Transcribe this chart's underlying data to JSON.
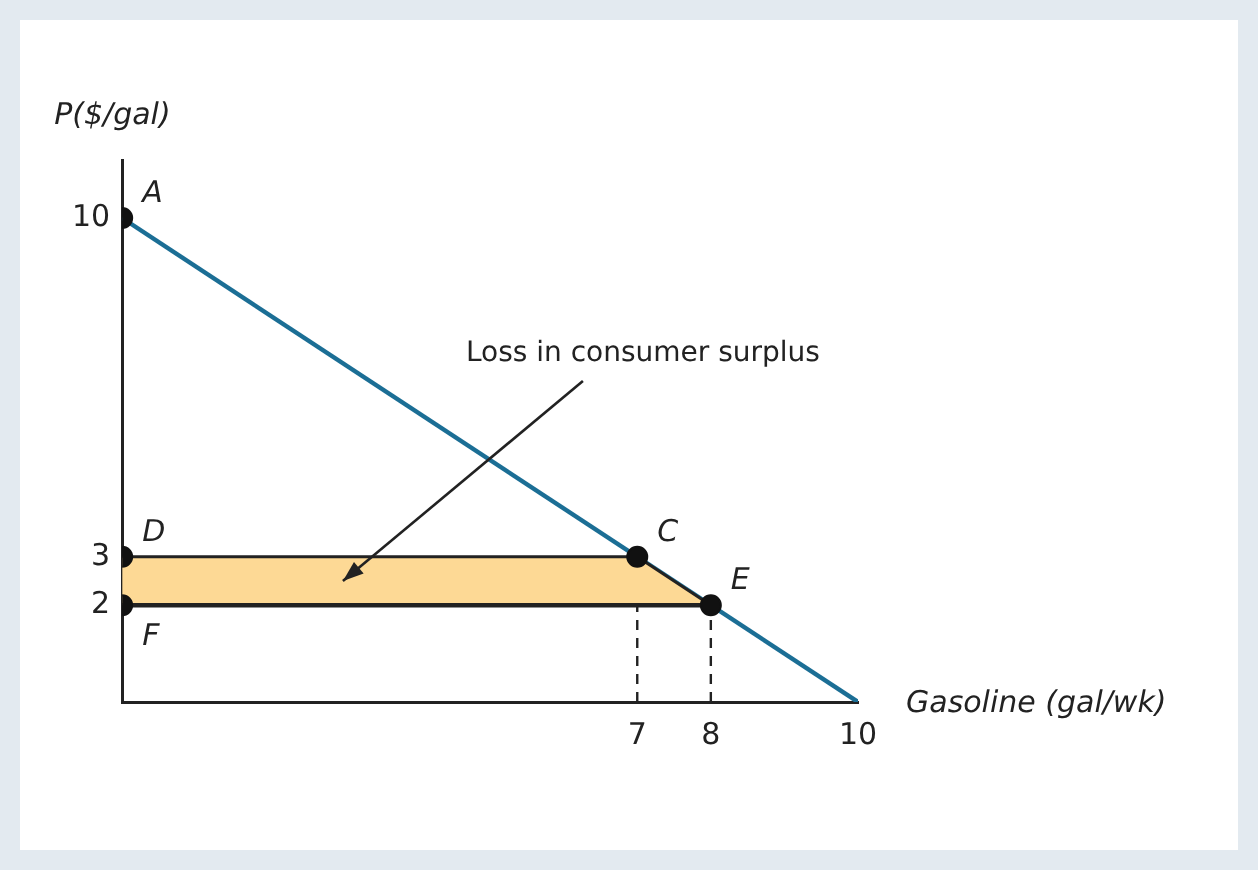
{
  "chart_data": {
    "type": "line",
    "xlabel": "Gasoline (gal/wk)",
    "ylabel": "P($/gal)",
    "series": [
      {
        "x": [
          0,
          8
        ],
        "values": [
          2,
          2
        ],
        "color": "#222222",
        "line_style": "solid"
      },
      {
        "type": "area",
        "x": [
          0,
          7,
          8
        ],
        "values": [
          3,
          3,
          2
        ],
        "color": "#fdd995"
      },
      {
        "x": [
          7,
          7
        ],
        "values": [
          0,
          3
        ],
        "color": "#222222",
        "line_style": "dashed"
      },
      {
        "x": [
          8,
          8
        ],
        "values": [
          0,
          2
        ],
        "color": "#222222",
        "line_style": "dashed"
      },
      {
        "x": [
          0,
          10
        ],
        "values": [
          10,
          0
        ],
        "color": "#1b6e95",
        "line_style": "solid"
      },
      {
        "type": "scatter",
        "x": [
          0,
          0,
          0,
          7,
          8
        ],
        "values": [
          10,
          3,
          2,
          3,
          2
        ],
        "color": "#111111",
        "marker": "circle"
      }
    ],
    "xlim": [
      0,
      10
    ],
    "xticks": [
      7,
      8,
      10
    ],
    "ylim": [
      0,
      11.2
    ],
    "yticks": [
      2,
      3,
      10
    ],
    "grid": false,
    "legend": false,
    "annotations": [
      {
        "text": "A",
        "x": 0,
        "y": 10
      },
      {
        "text": "D",
        "x": 0,
        "y": 3
      },
      {
        "text": "F",
        "x": 0,
        "y": 2
      },
      {
        "text": "C",
        "x": 7,
        "y": 3
      },
      {
        "text": "E",
        "x": 8,
        "y": 2
      },
      "Loss in consumer surplus"
    ]
  }
}
